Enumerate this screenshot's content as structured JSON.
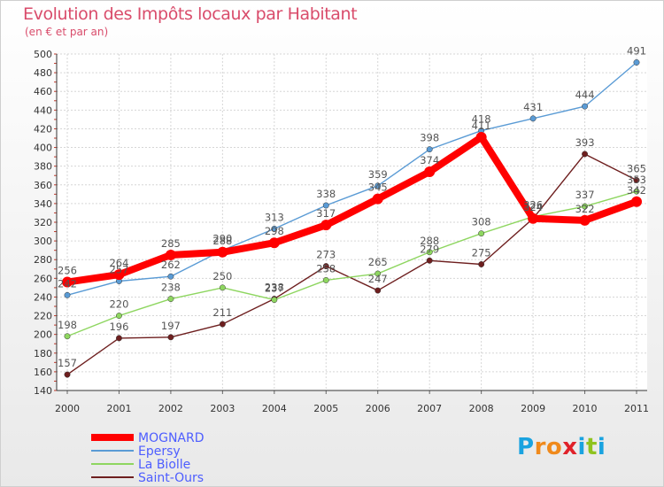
{
  "header": {
    "title": "Evolution des Impôts locaux par Habitant",
    "subtitle": "(en € et par an)"
  },
  "brand": {
    "letters": [
      "P",
      "r",
      "o",
      "x",
      "i",
      "t",
      "i"
    ],
    "colors": [
      "#1aa3e0",
      "#f08a1c",
      "#f08a1c",
      "#e0222a",
      "#1aa3e0",
      "#8fc31f",
      "#1aa3e0"
    ]
  },
  "chart_data": {
    "type": "line",
    "title": "Evolution des Impôts locaux par Habitant",
    "subtitle": "(en € et par an)",
    "xlabel": "",
    "ylabel": "",
    "ylim": [
      140,
      500
    ],
    "yticks": [
      140,
      160,
      180,
      200,
      220,
      240,
      260,
      280,
      300,
      320,
      340,
      360,
      380,
      400,
      420,
      440,
      460,
      480,
      500
    ],
    "categories": [
      "2000",
      "2001",
      "2002",
      "2003",
      "2004",
      "2005",
      "2006",
      "2007",
      "2008",
      "2009",
      "2010",
      "2011"
    ],
    "grid": true,
    "legend_position": "bottom-left",
    "series": [
      {
        "name": "Saint-Ours",
        "color": "#6e1f1f",
        "values": [
          157,
          196,
          197,
          211,
          238,
          273,
          247,
          279,
          275,
          324,
          393,
          365
        ],
        "labels": [
          "157",
          "196",
          "197",
          "211",
          "238",
          "273",
          "247",
          "279",
          "275",
          "324",
          "393",
          "365"
        ]
      },
      {
        "name": "La Biolle",
        "color": "#8ed660",
        "values": [
          198,
          220,
          238,
          250,
          237,
          258,
          265,
          288,
          308,
          326,
          337,
          353
        ],
        "labels": [
          "198",
          "220",
          "238",
          "250",
          "237",
          "258",
          "265",
          "288",
          "308",
          "326",
          "337",
          "353"
        ]
      },
      {
        "name": "Epersy",
        "color": "#5a9bd5",
        "values": [
          242,
          257,
          262,
          290,
          313,
          338,
          359,
          398,
          418,
          431,
          444,
          491
        ],
        "labels": [
          "242",
          "257",
          "262",
          "290",
          "313",
          "338",
          "359",
          "398",
          "418",
          "431",
          "444",
          "491"
        ]
      },
      {
        "name": "MOGNARD",
        "color": "#ff0000",
        "values": [
          256,
          264,
          285,
          288,
          298,
          317,
          345,
          374,
          411,
          324,
          322,
          342
        ],
        "labels": [
          "256",
          "264",
          "285",
          "288",
          "298",
          "317",
          "345",
          "374",
          "411",
          "324",
          "322",
          "342"
        ]
      }
    ],
    "legend": [
      "MOGNARD",
      "Epersy",
      "La Biolle",
      "Saint-Ours"
    ]
  }
}
